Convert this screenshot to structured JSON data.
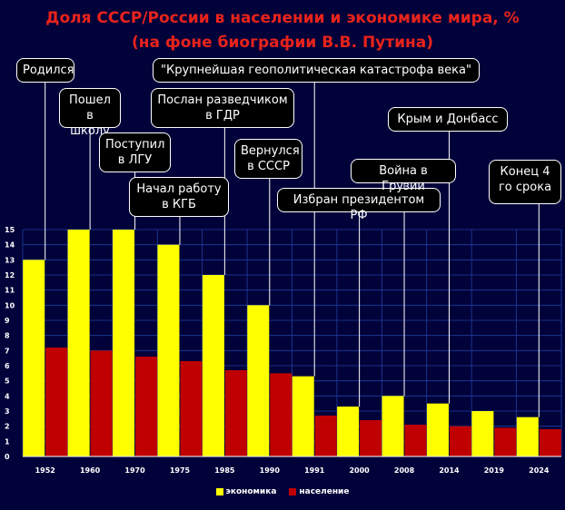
{
  "title_line1": "Доля СССР/России в населении и экономике мира, %",
  "title_line2": "(на фоне биографии В.В. Путина)",
  "colors": {
    "background": "#02023a",
    "economy": "#ffff00",
    "population": "#c00000",
    "title": "#e8231b",
    "grid": "#1e3fa0"
  },
  "chart_data": {
    "type": "bar",
    "categories": [
      "1952",
      "1960",
      "1970",
      "1975",
      "1985",
      "1990",
      "1991",
      "2000",
      "2008",
      "2014",
      "2019",
      "2024"
    ],
    "series": [
      {
        "name": "экономика",
        "values": [
          13,
          15,
          15,
          14,
          12,
          10,
          5.3,
          3.3,
          4,
          3.5,
          3,
          2.6
        ]
      },
      {
        "name": "население",
        "values": [
          7.2,
          7.0,
          6.6,
          6.3,
          5.7,
          5.5,
          2.7,
          2.4,
          2.1,
          2.0,
          1.9,
          1.8
        ]
      }
    ],
    "ylim": [
      0,
      15
    ],
    "yticks": [
      "0",
      "1",
      "2",
      "3",
      "4",
      "5",
      "6",
      "7",
      "8",
      "9",
      "10",
      "11",
      "12",
      "13",
      "14",
      "15"
    ],
    "grid": true,
    "legend": "bottom",
    "annotations": [
      {
        "text": "Родился",
        "category": "1952"
      },
      {
        "text": "Пошел в школу",
        "category": "1960"
      },
      {
        "text": "Поступил в ЛГУ",
        "category": "1970"
      },
      {
        "text": "Начал работу в КГБ",
        "category": "1975"
      },
      {
        "text": "Послан разведчиком в ГДР",
        "category": "1985"
      },
      {
        "text": "Вернулся в СССР",
        "category": "1990"
      },
      {
        "text": "\"Крупнейшая геополитическая катастрофа века\"",
        "category": "1991"
      },
      {
        "text": "Избран президентом РФ",
        "category": "2000"
      },
      {
        "text": "Война в Грузии",
        "category": "2008"
      },
      {
        "text": "Крым и Донбасс",
        "category": "2014"
      },
      {
        "text": "Конец 4 го срока",
        "category": "2024"
      }
    ]
  }
}
